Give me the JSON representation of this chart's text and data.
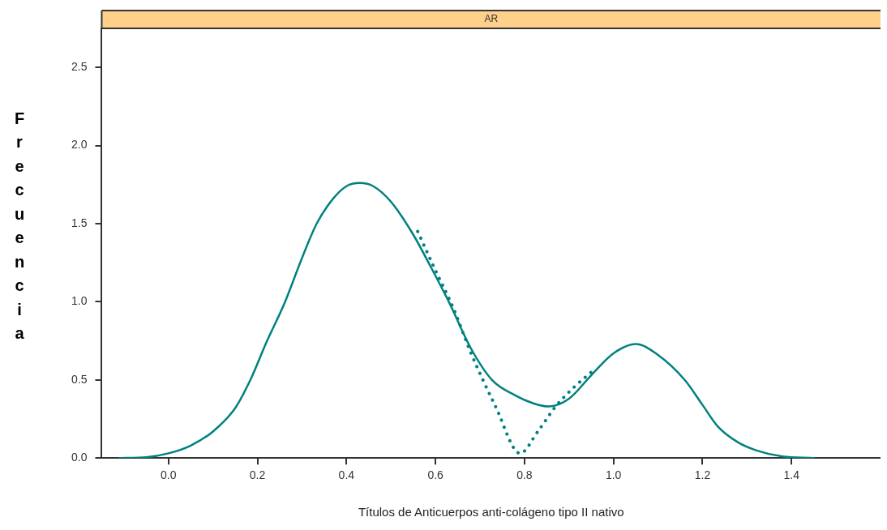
{
  "chart_data": {
    "type": "line",
    "title": "AR",
    "xlabel": "Títulos de Anticuerpos anti-colágeno tipo II nativo",
    "ylabel": "Frecuencia",
    "xlim": [
      -0.15,
      1.6
    ],
    "ylim": [
      0,
      2.75
    ],
    "xticks": [
      {
        "value": 0,
        "label": "0.0"
      },
      {
        "value": 0.2,
        "label": "0.2"
      },
      {
        "value": 0.4,
        "label": "0.4"
      },
      {
        "value": 0.6,
        "label": "0.6"
      },
      {
        "value": 0.8,
        "label": "0.8"
      },
      {
        "value": 1,
        "label": "1.0"
      },
      {
        "value": 1.2,
        "label": "1.2"
      },
      {
        "value": 1.4,
        "label": "1.4"
      }
    ],
    "yticks": [
      {
        "value": 0,
        "label": "0.0"
      },
      {
        "value": 0.5,
        "label": "0.5"
      },
      {
        "value": 1,
        "label": "1.0"
      },
      {
        "value": 1.5,
        "label": "1.5"
      },
      {
        "value": 2,
        "label": "2.0"
      },
      {
        "value": 2.5,
        "label": "2.5"
      }
    ],
    "grid": false,
    "legend": false,
    "marker": "none",
    "series": [
      {
        "color": "#008080",
        "line_style": "solid",
        "x": [
          -0.11,
          -0.05,
          0,
          0.05,
          0.1,
          0.15,
          0.184,
          0.22,
          0.262,
          0.3,
          0.333,
          0.37,
          0.4,
          0.43,
          0.46,
          0.5,
          0.55,
          0.59,
          0.63,
          0.68,
          0.727,
          0.78,
          0.82,
          0.854,
          0.9,
          0.95,
          1,
          1.05,
          1.1,
          1.16,
          1.2,
          1.235,
          1.28,
          1.32,
          1.38,
          1.45
        ],
        "values": [
          0,
          0.005,
          0.03,
          0.08,
          0.17,
          0.32,
          0.5,
          0.74,
          1,
          1.28,
          1.5,
          1.66,
          1.74,
          1.76,
          1.74,
          1.64,
          1.43,
          1.22,
          1,
          0.7,
          0.5,
          0.4,
          0.35,
          0.33,
          0.38,
          0.53,
          0.67,
          0.73,
          0.66,
          0.5,
          0.34,
          0.2,
          0.1,
          0.05,
          0.01,
          0
        ]
      },
      {
        "color": "#008080",
        "line_style": "dotted",
        "x": [
          0.56,
          0.6,
          0.64,
          0.68,
          0.735,
          0.79,
          0.83,
          0.87,
          0.91,
          0.95
        ],
        "values": [
          1.45,
          1.2,
          0.96,
          0.67,
          0.33,
          0.03,
          0.17,
          0.33,
          0.45,
          0.55
        ]
      }
    ]
  }
}
